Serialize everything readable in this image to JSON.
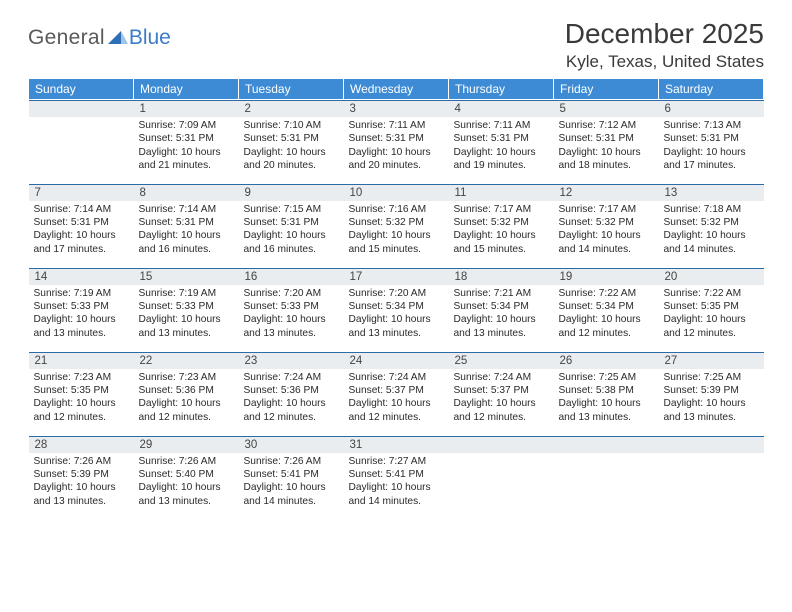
{
  "brand": {
    "general": "General",
    "blue": "Blue"
  },
  "header": {
    "month_title": "December 2025",
    "location": "Kyle, Texas, United States"
  },
  "calendar": {
    "type": "table",
    "header_bg": "#3d8bd4",
    "header_fg": "#ffffff",
    "daynum_bg": "#e9edef",
    "row_divider": "#2c6aa8",
    "background": "#ffffff",
    "body_font_size_pt": 8,
    "columns": [
      "Sunday",
      "Monday",
      "Tuesday",
      "Wednesday",
      "Thursday",
      "Friday",
      "Saturday"
    ],
    "first_weekday_index": 1,
    "num_days": 31,
    "days": [
      {
        "n": 1,
        "sunrise": "7:09 AM",
        "sunset": "5:31 PM",
        "daylight": "10 hours and 21 minutes."
      },
      {
        "n": 2,
        "sunrise": "7:10 AM",
        "sunset": "5:31 PM",
        "daylight": "10 hours and 20 minutes."
      },
      {
        "n": 3,
        "sunrise": "7:11 AM",
        "sunset": "5:31 PM",
        "daylight": "10 hours and 20 minutes."
      },
      {
        "n": 4,
        "sunrise": "7:11 AM",
        "sunset": "5:31 PM",
        "daylight": "10 hours and 19 minutes."
      },
      {
        "n": 5,
        "sunrise": "7:12 AM",
        "sunset": "5:31 PM",
        "daylight": "10 hours and 18 minutes."
      },
      {
        "n": 6,
        "sunrise": "7:13 AM",
        "sunset": "5:31 PM",
        "daylight": "10 hours and 17 minutes."
      },
      {
        "n": 7,
        "sunrise": "7:14 AM",
        "sunset": "5:31 PM",
        "daylight": "10 hours and 17 minutes."
      },
      {
        "n": 8,
        "sunrise": "7:14 AM",
        "sunset": "5:31 PM",
        "daylight": "10 hours and 16 minutes."
      },
      {
        "n": 9,
        "sunrise": "7:15 AM",
        "sunset": "5:31 PM",
        "daylight": "10 hours and 16 minutes."
      },
      {
        "n": 10,
        "sunrise": "7:16 AM",
        "sunset": "5:32 PM",
        "daylight": "10 hours and 15 minutes."
      },
      {
        "n": 11,
        "sunrise": "7:17 AM",
        "sunset": "5:32 PM",
        "daylight": "10 hours and 15 minutes."
      },
      {
        "n": 12,
        "sunrise": "7:17 AM",
        "sunset": "5:32 PM",
        "daylight": "10 hours and 14 minutes."
      },
      {
        "n": 13,
        "sunrise": "7:18 AM",
        "sunset": "5:32 PM",
        "daylight": "10 hours and 14 minutes."
      },
      {
        "n": 14,
        "sunrise": "7:19 AM",
        "sunset": "5:33 PM",
        "daylight": "10 hours and 13 minutes."
      },
      {
        "n": 15,
        "sunrise": "7:19 AM",
        "sunset": "5:33 PM",
        "daylight": "10 hours and 13 minutes."
      },
      {
        "n": 16,
        "sunrise": "7:20 AM",
        "sunset": "5:33 PM",
        "daylight": "10 hours and 13 minutes."
      },
      {
        "n": 17,
        "sunrise": "7:20 AM",
        "sunset": "5:34 PM",
        "daylight": "10 hours and 13 minutes."
      },
      {
        "n": 18,
        "sunrise": "7:21 AM",
        "sunset": "5:34 PM",
        "daylight": "10 hours and 13 minutes."
      },
      {
        "n": 19,
        "sunrise": "7:22 AM",
        "sunset": "5:34 PM",
        "daylight": "10 hours and 12 minutes."
      },
      {
        "n": 20,
        "sunrise": "7:22 AM",
        "sunset": "5:35 PM",
        "daylight": "10 hours and 12 minutes."
      },
      {
        "n": 21,
        "sunrise": "7:23 AM",
        "sunset": "5:35 PM",
        "daylight": "10 hours and 12 minutes."
      },
      {
        "n": 22,
        "sunrise": "7:23 AM",
        "sunset": "5:36 PM",
        "daylight": "10 hours and 12 minutes."
      },
      {
        "n": 23,
        "sunrise": "7:24 AM",
        "sunset": "5:36 PM",
        "daylight": "10 hours and 12 minutes."
      },
      {
        "n": 24,
        "sunrise": "7:24 AM",
        "sunset": "5:37 PM",
        "daylight": "10 hours and 12 minutes."
      },
      {
        "n": 25,
        "sunrise": "7:24 AM",
        "sunset": "5:37 PM",
        "daylight": "10 hours and 12 minutes."
      },
      {
        "n": 26,
        "sunrise": "7:25 AM",
        "sunset": "5:38 PM",
        "daylight": "10 hours and 13 minutes."
      },
      {
        "n": 27,
        "sunrise": "7:25 AM",
        "sunset": "5:39 PM",
        "daylight": "10 hours and 13 minutes."
      },
      {
        "n": 28,
        "sunrise": "7:26 AM",
        "sunset": "5:39 PM",
        "daylight": "10 hours and 13 minutes."
      },
      {
        "n": 29,
        "sunrise": "7:26 AM",
        "sunset": "5:40 PM",
        "daylight": "10 hours and 13 minutes."
      },
      {
        "n": 30,
        "sunrise": "7:26 AM",
        "sunset": "5:41 PM",
        "daylight": "10 hours and 14 minutes."
      },
      {
        "n": 31,
        "sunrise": "7:27 AM",
        "sunset": "5:41 PM",
        "daylight": "10 hours and 14 minutes."
      }
    ],
    "labels": {
      "sunrise": "Sunrise:",
      "sunset": "Sunset:",
      "daylight": "Daylight:"
    }
  }
}
